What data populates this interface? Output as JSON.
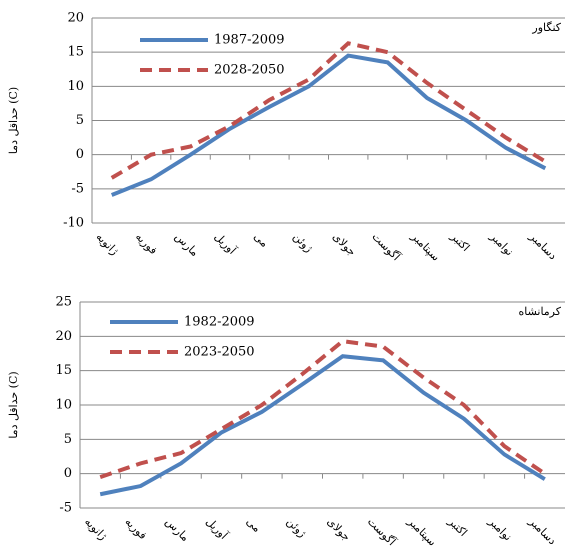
{
  "chart_data": [
    {
      "type": "line",
      "annotation": "کنگاور",
      "y_label": "حداقل دما (C)",
      "categories": [
        "ژانویه",
        "فوریه",
        "مارس",
        "آوریل",
        "می",
        "ژوئن",
        "جولای",
        "آگوست",
        "سپتامبر",
        "اکتبر",
        "نوامبر",
        "دسامبر"
      ],
      "series": [
        {
          "name": "1987-2009",
          "color": "#4f81bd",
          "dashed": false,
          "values": [
            -5.9,
            -3.6,
            0,
            3.8,
            7,
            10,
            14.5,
            13.5,
            8.3,
            5,
            1,
            -2
          ]
        },
        {
          "name": "2028-2050",
          "color": "#c0504d",
          "dashed": true,
          "values": [
            -3.4,
            0,
            1.2,
            4.2,
            8,
            11,
            16.3,
            15,
            10.5,
            6.5,
            2.5,
            -1
          ]
        }
      ],
      "ylim": [
        -10,
        20
      ],
      "yticks": [
        -10,
        -5,
        0,
        5,
        10,
        15,
        20
      ],
      "grid": true
    },
    {
      "type": "line",
      "annotation": "کرمانشاه",
      "y_label": "حداقل دما (C)",
      "categories": [
        "ژانویه",
        "فوریه",
        "مارس",
        "آوریل",
        "می",
        "ژوئن",
        "جولای",
        "آگوست",
        "سپتامبر",
        "اکتبر",
        "نوامبر",
        "دسامبر"
      ],
      "series": [
        {
          "name": "1982-2009",
          "color": "#4f81bd",
          "dashed": false,
          "values": [
            -3,
            -1.8,
            1.5,
            6,
            9,
            13,
            17.1,
            16.5,
            11.8,
            8,
            2.8,
            -0.8
          ]
        },
        {
          "name": "2023-2050",
          "color": "#c0504d",
          "dashed": true,
          "values": [
            -0.5,
            1.5,
            3,
            6.5,
            10,
            14.5,
            19.3,
            18.5,
            14,
            10,
            4,
            0
          ]
        }
      ],
      "ylim": [
        -5,
        25
      ],
      "yticks": [
        -5,
        0,
        5,
        10,
        15,
        20,
        25
      ],
      "grid": true
    }
  ]
}
